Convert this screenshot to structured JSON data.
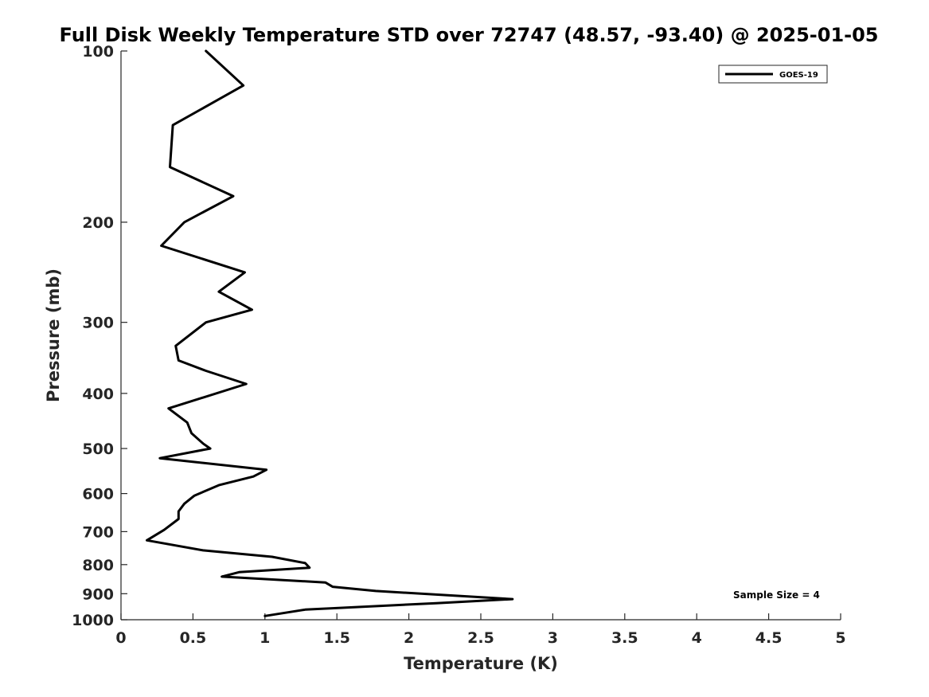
{
  "chart_data": {
    "type": "line",
    "title": "Full Disk Weekly Temperature STD over 72747 (48.57, -93.40) @ 2025-01-05",
    "xlabel": "Temperature (K)",
    "ylabel": "Pressure (mb)",
    "xlim": [
      0,
      5
    ],
    "ylim": [
      1000,
      100
    ],
    "y_scale": "log",
    "y_reversed": true,
    "grid": false,
    "legend_position": "top-right",
    "x_ticks": [
      0,
      0.5,
      1,
      1.5,
      2,
      2.5,
      3,
      3.5,
      4,
      4.5,
      5
    ],
    "x_tick_labels": [
      "0",
      "0.5",
      "1",
      "1.5",
      "2",
      "2.5",
      "3",
      "3.5",
      "4",
      "4.5",
      "5"
    ],
    "y_ticks": [
      100,
      200,
      300,
      400,
      500,
      600,
      700,
      800,
      900,
      1000
    ],
    "y_tick_labels": [
      "100",
      "200",
      "300",
      "400",
      "500",
      "600",
      "700",
      "800",
      "900",
      "1000"
    ],
    "series": [
      {
        "name": "GOES-19",
        "color": "#000000",
        "points": [
          [
            0.59,
            100
          ],
          [
            0.85,
            115
          ],
          [
            0.36,
            135
          ],
          [
            0.34,
            160
          ],
          [
            0.78,
            180
          ],
          [
            0.44,
            200
          ],
          [
            0.28,
            220
          ],
          [
            0.86,
            245
          ],
          [
            0.68,
            265
          ],
          [
            0.91,
            285
          ],
          [
            0.59,
            300
          ],
          [
            0.38,
            330
          ],
          [
            0.4,
            350
          ],
          [
            0.59,
            365
          ],
          [
            0.87,
            385
          ],
          [
            0.33,
            425
          ],
          [
            0.46,
            450
          ],
          [
            0.49,
            470
          ],
          [
            0.57,
            490
          ],
          [
            0.62,
            500
          ],
          [
            0.27,
            520
          ],
          [
            1.01,
            545
          ],
          [
            0.92,
            560
          ],
          [
            0.68,
            580
          ],
          [
            0.51,
            605
          ],
          [
            0.44,
            625
          ],
          [
            0.4,
            645
          ],
          [
            0.4,
            655
          ],
          [
            0.4,
            665
          ],
          [
            0.3,
            695
          ],
          [
            0.18,
            725
          ],
          [
            0.57,
            755
          ],
          [
            1.05,
            775
          ],
          [
            1.28,
            795
          ],
          [
            1.31,
            810
          ],
          [
            0.82,
            825
          ],
          [
            0.7,
            840
          ],
          [
            1.42,
            860
          ],
          [
            1.47,
            875
          ],
          [
            1.77,
            890
          ],
          [
            2.72,
            920
          ],
          [
            2.19,
            935
          ],
          [
            1.28,
            960
          ],
          [
            1.0,
            985
          ]
        ]
      }
    ],
    "annotation": "Sample Size = 4"
  }
}
